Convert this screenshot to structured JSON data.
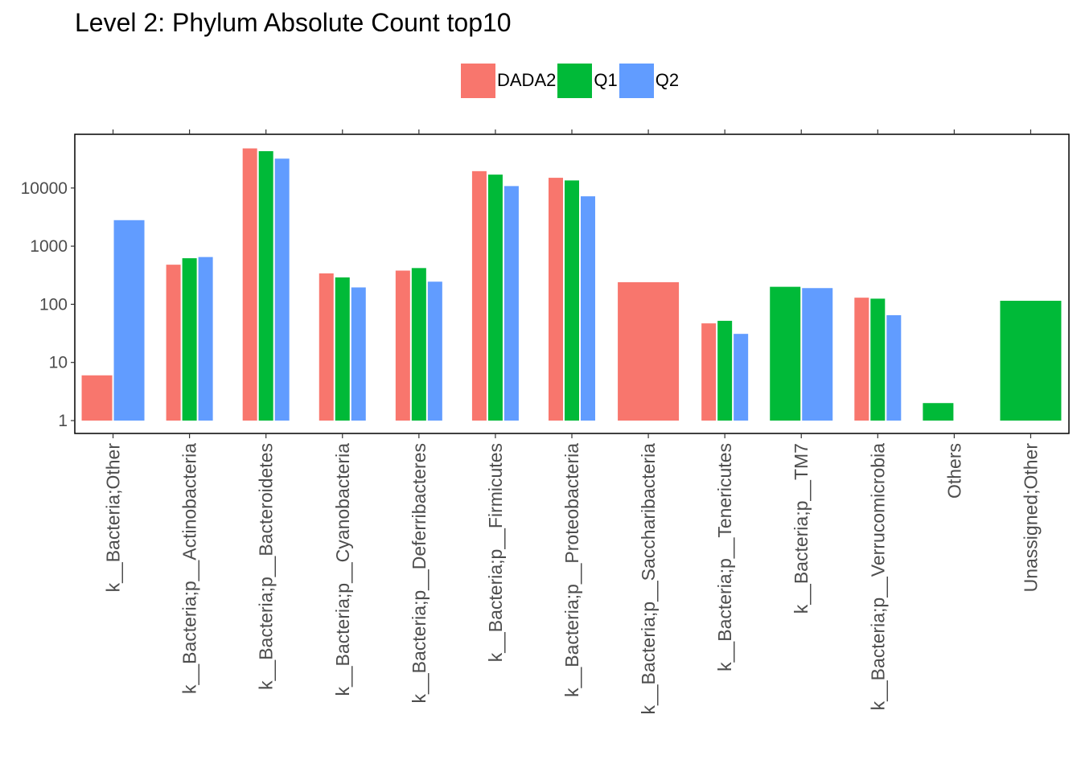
{
  "chart_data": {
    "type": "bar",
    "title": "Level 2: Phylum Absolute Count top10",
    "xlabel": "",
    "ylabel": "",
    "y_scale": "log10",
    "ylim": [
      1,
      90000
    ],
    "y_ticks": [
      1,
      10,
      100,
      1000,
      10000
    ],
    "y_tick_labels": [
      "1",
      "10",
      "100",
      "1000",
      "10000"
    ],
    "legend_position": "top",
    "categories": [
      "k__Bacteria;Other",
      "k__Bacteria;p__Actinobacteria",
      "k__Bacteria;p__Bacteroidetes",
      "k__Bacteria;p__Cyanobacteria",
      "k__Bacteria;p__Deferribacteres",
      "k__Bacteria;p__Firmicutes",
      "k__Bacteria;p__Proteobacteria",
      "k__Bacteria;p__Saccharibacteria",
      "k__Bacteria;p__Tenericutes",
      "k__Bacteria;p__TM7",
      "k__Bacteria;p__Verrucomicrobia",
      "Others",
      "Unassigned;Other"
    ],
    "series": [
      {
        "name": "DADA2",
        "color": "#F8766D",
        "values": [
          6,
          480,
          48000,
          340,
          380,
          19500,
          15000,
          240,
          47,
          null,
          130,
          null,
          null
        ]
      },
      {
        "name": "Q1",
        "color": "#00BA38",
        "values": [
          null,
          620,
          43000,
          290,
          420,
          17000,
          13500,
          null,
          52,
          200,
          125,
          2,
          115
        ]
      },
      {
        "name": "Q2",
        "color": "#619CFF",
        "values": [
          2800,
          650,
          32000,
          195,
          245,
          10800,
          7200,
          null,
          31,
          190,
          65,
          1,
          null
        ]
      }
    ]
  }
}
